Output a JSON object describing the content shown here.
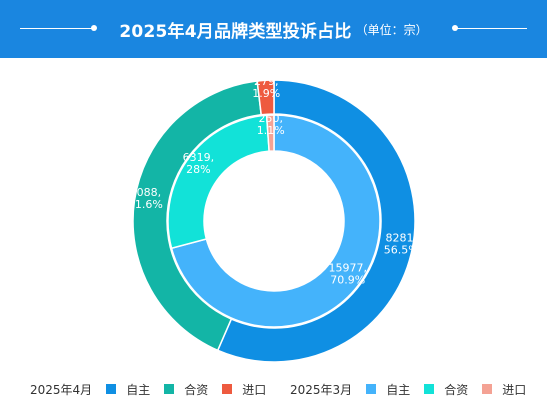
{
  "header": {
    "title": "2025年4月品牌类型投诉占比",
    "unit": "（单位：宗）"
  },
  "chart_data": {
    "type": "pie",
    "subtype": "nested-donut",
    "series": [
      {
        "name": "2025年4月",
        "ring": "outer",
        "slices": [
          {
            "label": "自主",
            "value": 8281,
            "percent": "56.5%",
            "color": "#0f8fe3",
            "text": "8281,\n56.5%"
          },
          {
            "label": "合资",
            "value": 6088,
            "percent": "41.6%",
            "color": "#13b5a6",
            "text": "6088,\n41.6%"
          },
          {
            "label": "进口",
            "value": 279,
            "percent": "1.9%",
            "color": "#ee5a3f",
            "text": "279,\n1.9%"
          }
        ]
      },
      {
        "name": "2025年3月",
        "ring": "inner",
        "slices": [
          {
            "label": "自主",
            "value": 15977,
            "percent": "70.9%",
            "color": "#44b3fb",
            "text": "15977,\n70.9%"
          },
          {
            "label": "合资",
            "value": 6319,
            "percent": "28%",
            "color": "#12e2d8",
            "text": "6319,\n28%"
          },
          {
            "label": "进口",
            "value": 250,
            "percent": "1.1%",
            "color": "#f4a294",
            "text": "250,\n1.1%"
          }
        ]
      }
    ],
    "legend_position": "bottom"
  }
}
